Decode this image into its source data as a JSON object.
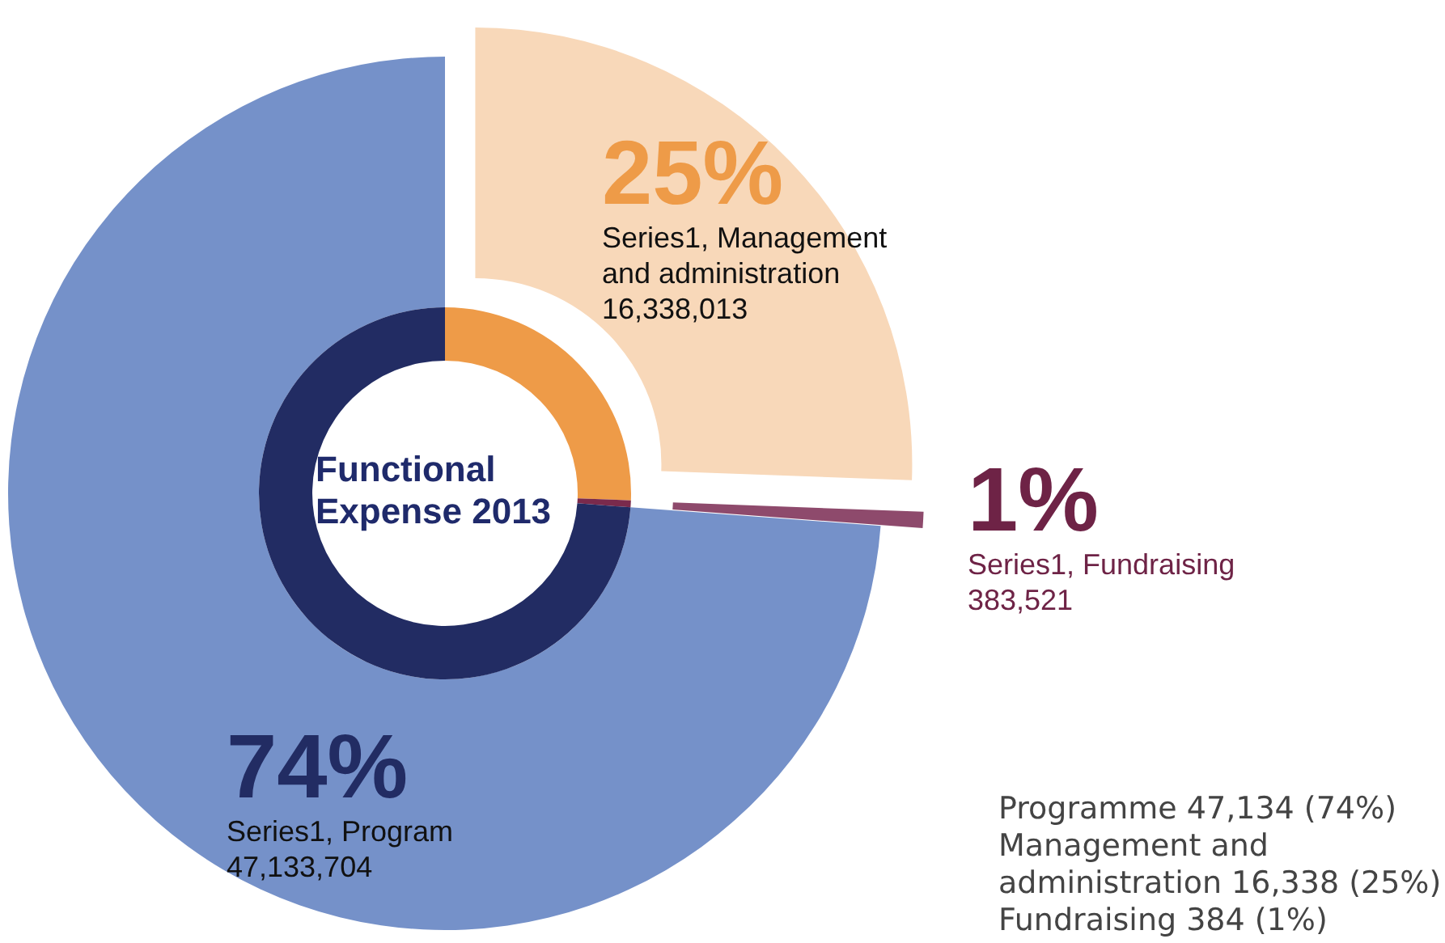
{
  "chart_data": [
    {
      "type": "donut",
      "legend": false,
      "categories": [
        "Series1, Management and administration",
        "Series1, Fundraising",
        "Series1, Program"
      ],
      "values": [
        16338013,
        383521,
        47133704
      ],
      "colors": [
        "#f8d8b9",
        "#8e4a6c",
        "#7591c9"
      ],
      "value_labels": [
        "16,338,013",
        "383,521",
        "47,133,704"
      ],
      "annotations": [
        {
          "text": "25%",
          "x": "Series1, Management and administration"
        },
        {
          "text": "1%",
          "x": "Series1, Fundraising"
        },
        {
          "text": "74%",
          "x": "Series1, Program"
        },
        "Programme 47,134 (74%)",
        "Management and administration 16,338 (25%)",
        "Fundraising 384 (1%)"
      ]
    },
    {
      "type": "donut",
      "title": "Functional Expense 2013",
      "categories": [
        null,
        null,
        null
      ],
      "values": [
        25.6,
        0.6,
        73.8
      ],
      "colors": [
        "#ee9b48",
        "#7a2a4c",
        "#222c63"
      ]
    }
  ]
}
